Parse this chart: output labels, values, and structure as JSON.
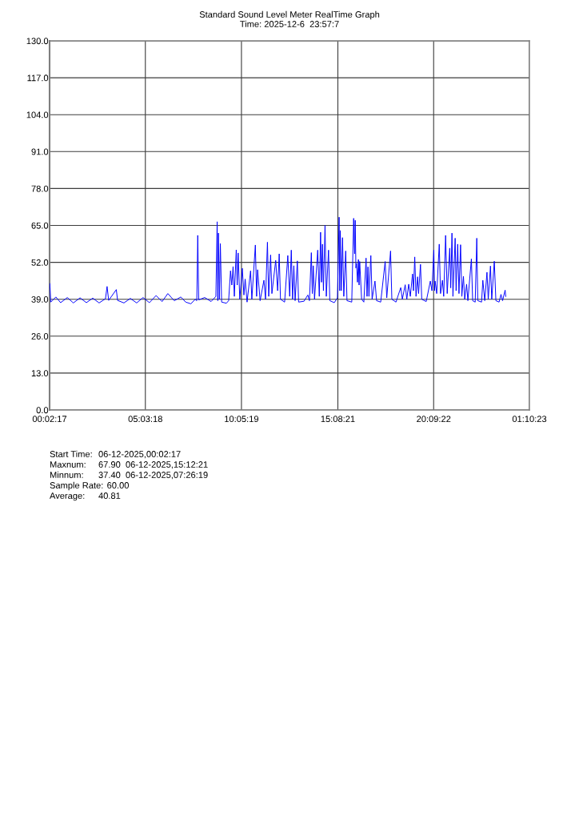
{
  "chart_data": {
    "type": "line",
    "title": "Standard Sound Level Meter RealTime Graph",
    "subtitle": "Time: 2025-12-6  23:57:7",
    "x": [
      "2025-12-06T00:03",
      "2025-12-06T00:06",
      "2025-12-06T00:22",
      "2025-12-06T00:37",
      "2025-12-06T00:58",
      "2025-12-06T01:17",
      "2025-12-06T01:38",
      "2025-12-06T01:58",
      "2025-12-06T02:18",
      "2025-12-06T02:38",
      "2025-12-06T02:58",
      "2025-12-06T03:03",
      "2025-12-06T03:08",
      "2025-12-06T03:32",
      "2025-12-06T03:36",
      "2025-12-06T03:56",
      "2025-12-06T04:16",
      "2025-12-06T04:36",
      "2025-12-06T04:56",
      "2025-12-06T05:16",
      "2025-12-06T05:37",
      "2025-12-06T05:56",
      "2025-12-06T06:14",
      "2025-12-06T06:34",
      "2025-12-06T06:55",
      "2025-12-06T07:10",
      "2025-12-06T07:26:19",
      "2025-12-06T07:40",
      "2025-12-06T07:45",
      "2025-12-06T07:48",
      "2025-12-06T07:51",
      "2025-12-06T08:10",
      "2025-12-06T08:30",
      "2025-12-06T08:45",
      "2025-12-06T08:49",
      "2025-12-06T08:51",
      "2025-12-06T08:53",
      "2025-12-06T08:56",
      "2025-12-06T08:59",
      "2025-12-06T09:03",
      "2025-12-06T09:18",
      "2025-12-06T09:25",
      "2025-12-06T09:31",
      "2025-12-06T09:35",
      "2025-12-06T09:39",
      "2025-12-06T09:43",
      "2025-12-06T09:49",
      "2025-12-06T09:52",
      "2025-12-06T09:55",
      "2025-12-06T10:00",
      "2025-12-06T10:08",
      "2025-12-06T10:13",
      "2025-12-06T10:17",
      "2025-12-06T10:23",
      "2025-12-06T10:34",
      "2025-12-06T10:38",
      "2025-12-06T10:49",
      "2025-12-06T10:53",
      "2025-12-06T10:56",
      "2025-12-06T11:04",
      "2025-12-06T11:16",
      "2025-12-06T11:21",
      "2025-12-06T11:27",
      "2025-12-06T11:31",
      "2025-12-06T11:37",
      "2025-12-06T11:41",
      "2025-12-06T11:53",
      "2025-12-06T11:59",
      "2025-12-06T12:04",
      "2025-12-06T12:08",
      "2025-12-06T12:21",
      "2025-12-06T12:31",
      "2025-12-06T12:37",
      "2025-12-06T12:42",
      "2025-12-06T12:46",
      "2025-12-06T12:50",
      "2025-12-06T12:54",
      "2025-12-06T13:01",
      "2025-12-06T13:05",
      "2025-12-06T13:22",
      "2025-12-06T13:34",
      "2025-12-06T13:39",
      "2025-12-06T13:45",
      "2025-12-06T13:48",
      "2025-12-06T13:51",
      "2025-12-06T13:55",
      "2025-12-06T14:05",
      "2025-12-06T14:10",
      "2025-12-06T14:14",
      "2025-12-06T14:17",
      "2025-12-06T14:20",
      "2025-12-06T14:23",
      "2025-12-06T14:28",
      "2025-12-06T14:32",
      "2025-12-06T14:39",
      "2025-12-06T14:43",
      "2025-12-06T14:57",
      "2025-12-06T15:07",
      "2025-12-06T15:12:21",
      "2025-12-06T15:14",
      "2025-12-06T15:16",
      "2025-12-06T15:19",
      "2025-12-06T15:23",
      "2025-12-06T15:27",
      "2025-12-06T15:33",
      "2025-12-06T15:37",
      "2025-12-06T15:52",
      "2025-12-06T15:58",
      "2025-12-06T16:01",
      "2025-12-06T16:03",
      "2025-12-06T16:05",
      "2025-12-06T16:07",
      "2025-12-06T16:10",
      "2025-12-06T16:13",
      "2025-12-06T16:15",
      "2025-12-06T16:17",
      "2025-12-06T16:23",
      "2025-12-06T16:30",
      "2025-12-06T16:37",
      "2025-12-06T16:40",
      "2025-12-06T16:43",
      "2025-12-06T16:46",
      "2025-12-06T16:52",
      "2025-12-06T16:56",
      "2025-12-06T17:05",
      "2025-12-06T17:10",
      "2025-12-06T17:23",
      "2025-12-06T17:37",
      "2025-12-06T17:42",
      "2025-12-06T17:54",
      "2025-12-06T17:58",
      "2025-12-06T18:11",
      "2025-12-06T18:26",
      "2025-12-06T18:31",
      "2025-12-06T18:40",
      "2025-12-06T18:45",
      "2025-12-06T18:51",
      "2025-12-06T18:56",
      "2025-12-06T19:03",
      "2025-12-06T19:06",
      "2025-12-06T19:10",
      "2025-12-06T19:14",
      "2025-12-06T19:19",
      "2025-12-06T19:22",
      "2025-12-06T19:28",
      "2025-12-06T19:32",
      "2025-12-06T19:46",
      "2025-12-06T19:59",
      "2025-12-06T20:04",
      "2025-12-06T20:10",
      "2025-12-06T20:12",
      "2025-12-06T20:14",
      "2025-12-06T20:19",
      "2025-12-06T20:27",
      "2025-12-06T20:31",
      "2025-12-06T20:37",
      "2025-12-06T20:41",
      "2025-12-06T20:47",
      "2025-12-06T20:52",
      "2025-12-06T21:00",
      "2025-12-06T21:03",
      "2025-12-06T21:07",
      "2025-12-06T21:10",
      "2025-12-06T21:17",
      "2025-12-06T21:20",
      "2025-12-06T21:25",
      "2025-12-06T21:29",
      "2025-12-06T21:34",
      "2025-12-06T21:38",
      "2025-12-06T21:43",
      "2025-12-06T21:47",
      "2025-12-06T21:53",
      "2025-12-06T21:57",
      "2025-12-06T22:08",
      "2025-12-06T22:12",
      "2025-12-06T22:20",
      "2025-12-06T22:25",
      "2025-12-06T22:28",
      "2025-12-06T22:40",
      "2025-12-06T22:44",
      "2025-12-06T22:50",
      "2025-12-06T22:57",
      "2025-12-06T23:01",
      "2025-12-06T23:08",
      "2025-12-06T23:12",
      "2025-12-06T23:20",
      "2025-12-06T23:25",
      "2025-12-06T23:35",
      "2025-12-06T23:41",
      "2025-12-06T23:46",
      "2025-12-06T23:54",
      "2025-12-06T23:56"
    ],
    "series": [
      {
        "color": "#0000ff",
        "values": [
          44.5,
          38.0,
          39.8,
          37.8,
          39.6,
          37.7,
          39.5,
          37.8,
          39.4,
          37.7,
          39.2,
          43.5,
          38.6,
          42.4,
          38.6,
          37.7,
          39.3,
          37.7,
          39.6,
          37.8,
          40.3,
          38.2,
          41.0,
          38.5,
          39.8,
          38.0,
          37.4,
          39.0,
          38.5,
          61.5,
          38.8,
          39.6,
          38.2,
          40.0,
          66.3,
          38.5,
          62.3,
          39.0,
          58.6,
          38.0,
          37.6,
          38.5,
          49.0,
          44.0,
          50.5,
          40.0,
          56.4,
          44.0,
          55.3,
          39.0,
          49.9,
          40.5,
          46.1,
          38.0,
          49.0,
          39.0,
          58.1,
          40.0,
          49.4,
          38.5,
          45.7,
          39.0,
          59.1,
          40.0,
          54.6,
          41.0,
          52.7,
          42.0,
          55.0,
          39.0,
          38.0,
          54.4,
          40.0,
          56.3,
          39.0,
          50.8,
          38.5,
          52.5,
          38.0,
          38.3,
          40.5,
          38.5,
          55.4,
          41.0,
          50.8,
          39.0,
          56.3,
          40.0,
          62.6,
          45.0,
          58.4,
          42.0,
          65.0,
          40.0,
          56.3,
          38.5,
          37.8,
          39.5,
          67.9,
          42.0,
          63.2,
          42.0,
          60.7,
          40.0,
          56.0,
          38.5,
          38.0,
          67.5,
          55.0,
          66.8,
          50.0,
          51.6,
          45.0,
          53.0,
          44.0,
          52.3,
          39.0,
          38.0,
          53.5,
          40.0,
          50.4,
          40.0,
          54.4,
          39.0,
          45.4,
          38.5,
          38.0,
          52.3,
          39.5,
          56.0,
          39.0,
          38.0,
          43.1,
          39.0,
          44.1,
          39.0,
          44.3,
          40.0,
          47.9,
          42.0,
          53.9,
          40.0,
          46.9,
          41.0,
          51.3,
          39.0,
          38.2,
          45.4,
          42.0,
          56.3,
          42.0,
          45.4,
          41.0,
          58.4,
          41.0,
          45.7,
          40.0,
          61.5,
          41.0,
          57.0,
          43.0,
          62.3,
          40.0,
          60.5,
          42.0,
          58.4,
          41.0,
          58.2,
          40.0,
          47.1,
          39.0,
          44.3,
          38.5,
          53.2,
          38.5,
          38.0,
          60.5,
          38.5,
          38.0,
          45.7,
          38.5,
          48.5,
          39.0,
          50.7,
          39.0,
          52.4,
          38.5,
          38.0,
          40.7,
          38.5,
          42.2,
          40.0
        ]
      }
    ],
    "xlim": [
      "2025-12-06T00:02:17",
      "2025-12-07T01:10:23"
    ],
    "xticks": [
      {
        "value": "2025-12-06T00:02:17",
        "label": "00:02:17"
      },
      {
        "value": "2025-12-06T05:03:18",
        "label": "05:03:18"
      },
      {
        "value": "2025-12-06T10:05:19",
        "label": "10:05:19"
      },
      {
        "value": "2025-12-06T15:08:21",
        "label": "15:08:21"
      },
      {
        "value": "2025-12-06T20:09:22",
        "label": "20:09:22"
      },
      {
        "value": "2025-12-07T01:10:23",
        "label": "01:10:23"
      }
    ],
    "ylim": [
      0,
      130
    ],
    "yticks": [
      {
        "value": 0,
        "label": "0.0"
      },
      {
        "value": 13,
        "label": "13.0"
      },
      {
        "value": 26,
        "label": "26.0"
      },
      {
        "value": 39,
        "label": "39.0"
      },
      {
        "value": 52,
        "label": "52.0"
      },
      {
        "value": 65,
        "label": "65.0"
      },
      {
        "value": 78,
        "label": "78.0"
      },
      {
        "value": 91,
        "label": "91.0"
      },
      {
        "value": 104,
        "label": "104.0"
      },
      {
        "value": 117,
        "label": "117.0"
      },
      {
        "value": 130,
        "label": "130.0"
      }
    ],
    "grid": true,
    "annotations": [
      "Start Time: 06-12-2025,00:02:17",
      "Maxnum: 67.90  06-12-2025,15:12:21",
      "Minnum: 37.40  06-12-2025,07:26:19",
      "Sample Rate: 60.00",
      "Average: 40.81"
    ]
  }
}
